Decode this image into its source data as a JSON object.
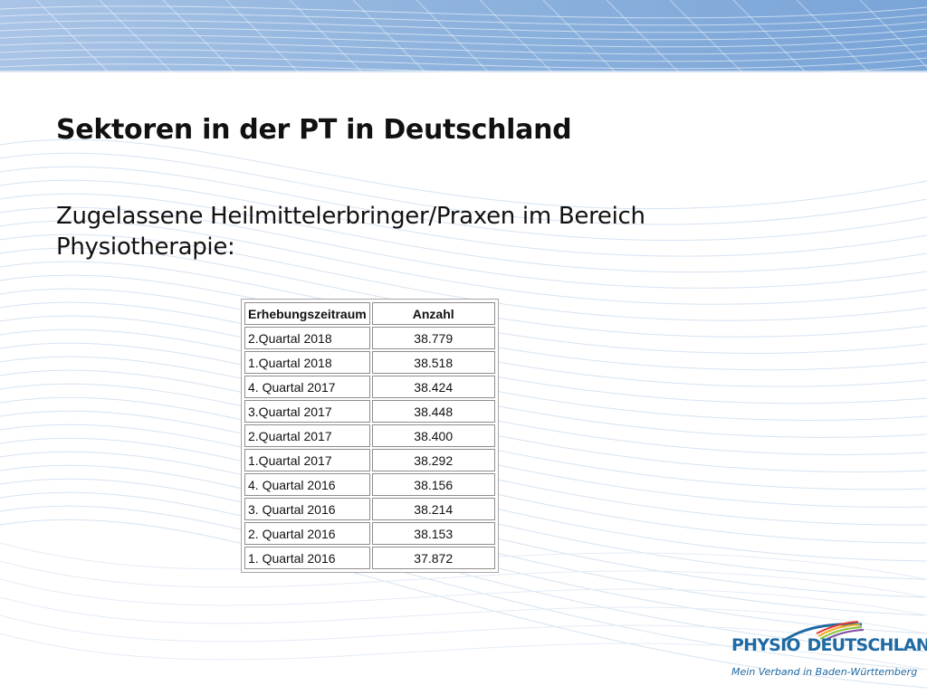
{
  "slide": {
    "title": "Sektoren in der PT in Deutschland",
    "subtitle": "Zugelassene Heilmittelerbringer/Praxen im Bereich Physiotherapie:"
  },
  "table": {
    "headers": [
      "Erhebungszeitraum",
      "Anzahl"
    ],
    "rows": [
      {
        "period": "2.Quartal 2018",
        "count": "38.779"
      },
      {
        "period": "1.Quartal 2018",
        "count": "38.518"
      },
      {
        "period": "4. Quartal 2017",
        "count": "38.424"
      },
      {
        "period": "3.Quartal 2017",
        "count": "38.448"
      },
      {
        "period": "2.Quartal 2017",
        "count": "38.400"
      },
      {
        "period": "1.Quartal 2017",
        "count": "38.292"
      },
      {
        "period": "4. Quartal 2016",
        "count": "38.156"
      },
      {
        "period": "3. Quartal 2016",
        "count": "38.214"
      },
      {
        "period": "2. Quartal 2016",
        "count": "38.153"
      },
      {
        "period": "1. Quartal 2016",
        "count": "37.872"
      }
    ]
  },
  "logo": {
    "brand_left": "PHYSIO",
    "brand_right": "DEUTSCHLAND",
    "tagline": "Mein Verband in Baden-Württemberg"
  },
  "colors": {
    "brand_blue": "#1f6aa3",
    "band_blue": "#8fb4de",
    "wave_line": "#c9d9ec"
  }
}
